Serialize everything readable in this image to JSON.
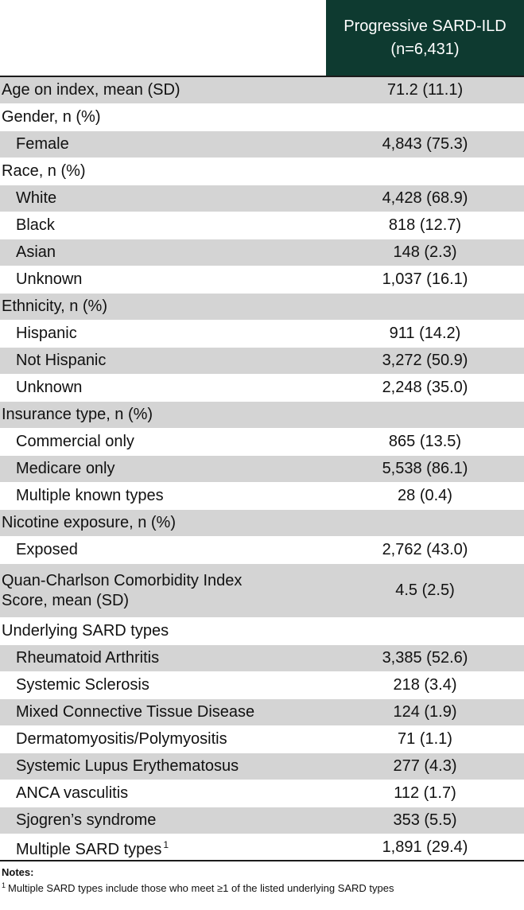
{
  "header": {
    "left": "",
    "right_line1": "Progressive SARD-ILD",
    "right_line2": "(n=6,431)"
  },
  "rows": [
    {
      "label": "Age on index, mean (SD)",
      "value": "71.2 (11.1)"
    },
    {
      "label": "Gender, n (%)",
      "value": ""
    },
    {
      "label": "Female",
      "value": "4,843 (75.3)"
    },
    {
      "label": "Race, n (%)",
      "value": ""
    },
    {
      "label": "White",
      "value": "4,428 (68.9)"
    },
    {
      "label": "Black",
      "value": "818 (12.7)"
    },
    {
      "label": "Asian",
      "value": "148 (2.3)"
    },
    {
      "label": "Unknown",
      "value": "1,037 (16.1)"
    },
    {
      "label": "Ethnicity, n (%)",
      "value": ""
    },
    {
      "label": "Hispanic",
      "value": "911 (14.2)"
    },
    {
      "label": "Not Hispanic",
      "value": "3,272 (50.9)"
    },
    {
      "label": "Unknown",
      "value": "2,248 (35.0)"
    },
    {
      "label": "Insurance type, n (%)",
      "value": ""
    },
    {
      "label": "Commercial only",
      "value": "865 (13.5)"
    },
    {
      "label": "Medicare only",
      "value": "5,538 (86.1)"
    },
    {
      "label": "Multiple known types",
      "value": "28 (0.4)"
    },
    {
      "label": "Nicotine exposure, n (%)",
      "value": ""
    },
    {
      "label": "Exposed",
      "value": "2,762 (43.0)"
    },
    {
      "label_line1": "Quan-Charlson Comorbidity Index",
      "label_line2": "Score, mean (SD)",
      "value": "4.5 (2.5)"
    },
    {
      "label": "Underlying SARD types",
      "value": ""
    },
    {
      "label": "Rheumatoid Arthritis",
      "value": "3,385 (52.6)"
    },
    {
      "label": "Systemic Sclerosis",
      "value": "218 (3.4)"
    },
    {
      "label": "Mixed Connective Tissue Disease",
      "value": "124 (1.9)"
    },
    {
      "label": "Dermatomyositis/Polymyositis",
      "value": "71 (1.1)"
    },
    {
      "label": "Systemic Lupus Erythematosus",
      "value": "277 (4.3)"
    },
    {
      "label": "ANCA vasculitis",
      "value": "112 (1.7)"
    },
    {
      "label": "Sjogren’s syndrome",
      "value": "353 (5.5)"
    },
    {
      "label": "Multiple SARD types",
      "sup": "1",
      "value": "1,891 (29.4)"
    }
  ],
  "notes": {
    "title": "Notes:",
    "note1_sup": "1",
    "note1_text": "Multiple SARD types include those who meet ≥1 of the listed underlying SARD types"
  }
}
